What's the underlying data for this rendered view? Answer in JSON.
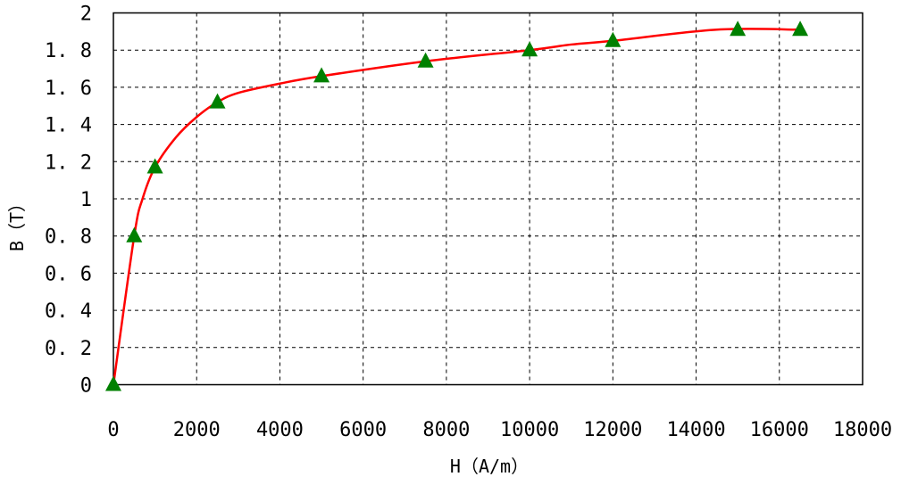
{
  "chart_data": {
    "type": "line",
    "title": "",
    "xlabel": "H（A/m）",
    "ylabel": "B（T）",
    "xlim": [
      0,
      18000
    ],
    "ylim": [
      0,
      2
    ],
    "xticks": [
      "0",
      "2000",
      "4000",
      "6000",
      "8000",
      "10000",
      "12000",
      "14000",
      "16000",
      "18000"
    ],
    "yticks": [
      "0",
      "0. 2",
      "0. 4",
      "0. 6",
      "0. 8",
      "1",
      "1. 2",
      "1. 4",
      "1. 6",
      "1. 8",
      "2"
    ],
    "grid": true,
    "grid_style": "dashed",
    "legend": "none",
    "series": [
      {
        "type": "scatter",
        "marker": "triangle",
        "color": "#008000",
        "x": [
          0,
          500,
          1000,
          2500,
          5000,
          7500,
          10000,
          12000,
          15000,
          16500
        ],
        "y": [
          0,
          0.8,
          1.17,
          1.52,
          1.66,
          1.74,
          1.8,
          1.85,
          1.91,
          1.91
        ]
      },
      {
        "type": "line",
        "smooth": true,
        "color": "#ff0000",
        "x": [
          0,
          500,
          700,
          1000,
          1500,
          2000,
          2500,
          3000,
          4000,
          5000,
          7500,
          10000,
          11000,
          12000,
          14500,
          16500
        ],
        "y": [
          0,
          0.8,
          1.0,
          1.17,
          1.33,
          1.44,
          1.52,
          1.57,
          1.62,
          1.66,
          1.74,
          1.8,
          1.83,
          1.85,
          1.91,
          1.91
        ]
      }
    ]
  }
}
